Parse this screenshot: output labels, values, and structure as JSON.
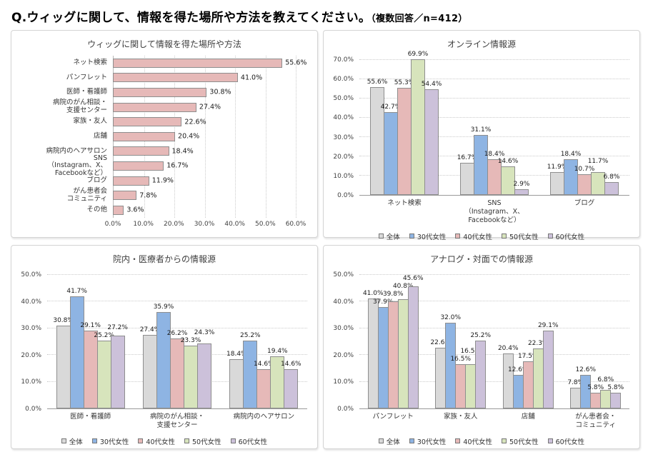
{
  "header": {
    "title_main": "Q.ウィッグに関して、情報を得た場所や方法を教えてください。",
    "title_note": "（複数回答／n=412）"
  },
  "legend": {
    "items": [
      "全体",
      "30代女性",
      "40代女性",
      "50代女性",
      "60代女性"
    ],
    "colors": [
      "#d9d9d9",
      "#8eb4e3",
      "#e6b9b8",
      "#d7e4bc",
      "#ccc1da"
    ]
  },
  "chart_data": [
    {
      "type": "bar",
      "orientation": "horizontal",
      "title": "ウィッグに関して情報を得た場所や方法",
      "categories": [
        "ネット検索",
        "パンフレット",
        "医師・看護師",
        "病院のがん相談・\n支援センター",
        "家族・友人",
        "店舗",
        "病院内のヘアサロン",
        "SNS\n（Instagram、X、Facebookなど）",
        "ブログ",
        "がん患者会\nコミュニティ",
        "その他"
      ],
      "values": [
        55.6,
        41.0,
        30.8,
        27.4,
        22.6,
        20.4,
        18.4,
        16.7,
        11.9,
        7.8,
        3.6
      ],
      "xmax": 60,
      "xticks": [
        "0.0%",
        "10.0%",
        "20.0%",
        "30.0%",
        "40.0%",
        "50.0%",
        "60.0%"
      ],
      "bar_color": "#e6b9b8",
      "grid": true
    },
    {
      "type": "bar",
      "orientation": "vertical",
      "title": "オンライン情報源",
      "categories": [
        "ネット検索",
        "SNS\n（Instagram、X、Facebookなど）",
        "ブログ"
      ],
      "series": [
        {
          "name": "全体",
          "values": [
            55.6,
            16.7,
            11.9
          ]
        },
        {
          "name": "30代女性",
          "values": [
            42.7,
            31.1,
            18.4
          ]
        },
        {
          "name": "40代女性",
          "values": [
            55.3,
            18.4,
            10.7
          ]
        },
        {
          "name": "50代女性",
          "values": [
            69.9,
            14.6,
            11.7
          ]
        },
        {
          "name": "60代女性",
          "values": [
            54.4,
            2.9,
            6.8
          ]
        }
      ],
      "ymax": 70,
      "yticks": [
        "0.0%",
        "10.0%",
        "20.0%",
        "30.0%",
        "40.0%",
        "50.0%",
        "60.0%",
        "70.0%"
      ],
      "legend_position": "bottom",
      "grid": true
    },
    {
      "type": "bar",
      "orientation": "vertical",
      "title": "院内・医療者からの情報源",
      "categories": [
        "医師・看護師",
        "病院のがん相談・\n支援センター",
        "病院内のヘアサロン"
      ],
      "series": [
        {
          "name": "全体",
          "values": [
            30.8,
            27.4,
            18.4
          ]
        },
        {
          "name": "30代女性",
          "values": [
            41.7,
            35.9,
            25.2
          ]
        },
        {
          "name": "40代女性",
          "values": [
            29.1,
            26.2,
            14.6
          ]
        },
        {
          "name": "50代女性",
          "values": [
            25.2,
            23.3,
            19.4
          ]
        },
        {
          "name": "60代女性",
          "values": [
            27.2,
            24.3,
            14.6
          ]
        }
      ],
      "ymax": 50,
      "yticks": [
        "0.0%",
        "10.0%",
        "20.0%",
        "30.0%",
        "40.0%",
        "50.0%"
      ],
      "legend_position": "bottom",
      "grid": true
    },
    {
      "type": "bar",
      "orientation": "vertical",
      "title": "アナログ・対面での情報源",
      "categories": [
        "パンフレット",
        "家族・友人",
        "店舗",
        "がん患者会・\nコミュニティ"
      ],
      "series": [
        {
          "name": "全体",
          "values": [
            41.0,
            22.6,
            20.4,
            7.8
          ]
        },
        {
          "name": "30代女性",
          "values": [
            37.9,
            32.0,
            12.6,
            12.6
          ]
        },
        {
          "name": "40代女性",
          "values": [
            39.8,
            16.5,
            17.5,
            5.8
          ]
        },
        {
          "name": "50代女性",
          "values": [
            40.8,
            16.5,
            22.3,
            6.8
          ]
        },
        {
          "name": "60代女性",
          "values": [
            45.6,
            25.2,
            29.1,
            5.8
          ]
        }
      ],
      "ymax": 50,
      "yticks": [
        "0.0%",
        "10.0%",
        "20.0%",
        "30.0%",
        "40.0%",
        "50.0%"
      ],
      "legend_position": "bottom",
      "grid": true
    }
  ]
}
